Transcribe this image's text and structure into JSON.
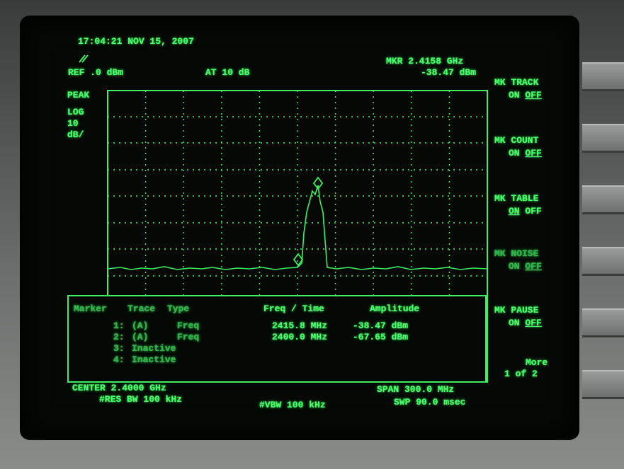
{
  "header": {
    "datetime": "17:04:21 NOV 15, 2007",
    "ref_level": "REF .0 dBm",
    "attenuation": "AT 10 dB",
    "marker_freq": "MKR 2.4158 GHz",
    "marker_amp": "-38.47 dBm"
  },
  "scale": [
    "PEAK",
    "LOG",
    "10",
    "dB/"
  ],
  "softkeys": [
    {
      "label": "MK TRACK",
      "on": "ON",
      "off": "OFF"
    },
    {
      "label": "MK COUNT",
      "on": "ON",
      "off": "OFF"
    },
    {
      "label": "MK TABLE",
      "on": "ON",
      "off": "OFF"
    },
    {
      "label": "MK NOISE",
      "on": "ON",
      "off": "OFF"
    },
    {
      "label": "MK PAUSE",
      "on": "ON",
      "off": "OFF"
    },
    {
      "label": "More",
      "page": "1 of 2"
    }
  ],
  "table": {
    "headers": [
      "Marker",
      "Trace",
      "Type",
      "Freq / Time",
      "Amplitude"
    ],
    "rows": [
      [
        "1:",
        "(A)",
        "Freq",
        "2415.8 MHz",
        "-38.47 dBm"
      ],
      [
        "2:",
        "(A)",
        "Freq",
        "2400.0 MHz",
        "-67.65 dBm"
      ],
      [
        "3:",
        "Inactive"
      ],
      [
        "4:",
        "Inactive"
      ]
    ]
  },
  "footer": {
    "center": "CENTER 2.4000 GHz",
    "res_bw": "#RES BW 100 kHz",
    "vbw": "#VBW 100 kHz",
    "span": "SPAN 300.0 MHz",
    "sweep": "SWP 90.0 msec"
  }
}
